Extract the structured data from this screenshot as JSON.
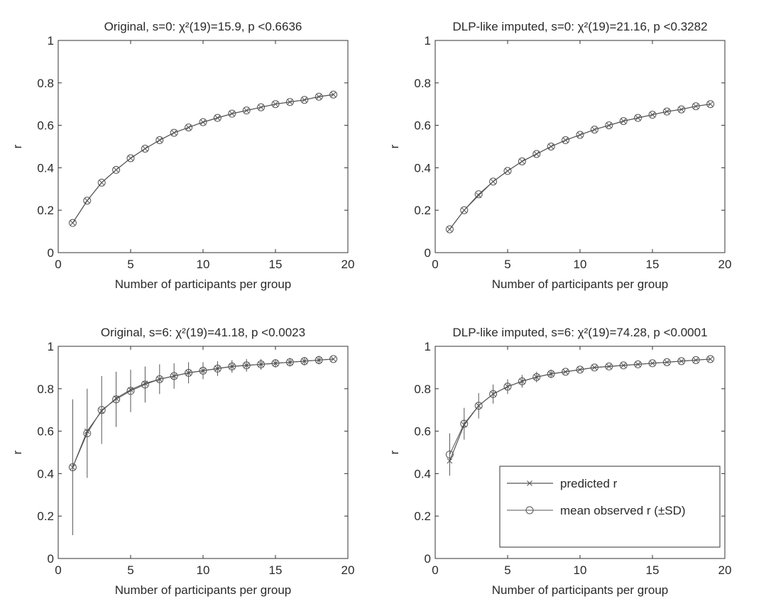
{
  "chart_data": [
    {
      "type": "line",
      "title": "Original, s=0: χ²(19)=15.9, p <0.6636",
      "xlabel": "Number of participants per group",
      "ylabel": "r",
      "xlim": [
        0,
        20
      ],
      "ylim": [
        0,
        1
      ],
      "xticks": [
        0,
        5,
        10,
        15,
        20
      ],
      "yticks": [
        0,
        0.2,
        0.4,
        0.6,
        0.8,
        1
      ],
      "x": [
        1,
        2,
        3,
        4,
        5,
        6,
        7,
        8,
        9,
        10,
        11,
        12,
        13,
        14,
        15,
        16,
        17,
        18,
        19
      ],
      "series": [
        {
          "name": "predicted r",
          "marker": "x",
          "values": [
            0.14,
            0.245,
            0.33,
            0.39,
            0.445,
            0.49,
            0.53,
            0.565,
            0.59,
            0.615,
            0.635,
            0.655,
            0.67,
            0.685,
            0.7,
            0.71,
            0.72,
            0.735,
            0.745
          ],
          "sd": null
        },
        {
          "name": "mean observed r (±SD)",
          "marker": "o",
          "values": [
            0.14,
            0.245,
            0.33,
            0.39,
            0.445,
            0.49,
            0.53,
            0.565,
            0.59,
            0.615,
            0.635,
            0.655,
            0.67,
            0.685,
            0.7,
            0.71,
            0.72,
            0.735,
            0.745
          ],
          "sd": [
            0.01,
            0.01,
            0.01,
            0.01,
            0.01,
            0.01,
            0.01,
            0.01,
            0.01,
            0.01,
            0.01,
            0.01,
            0.01,
            0.01,
            0.01,
            0.01,
            0.01,
            0.01,
            0.01
          ]
        }
      ],
      "legend": false
    },
    {
      "type": "line",
      "title": "DLP-like imputed, s=0: χ²(19)=21.16, p <0.3282",
      "xlabel": "Number of participants per group",
      "ylabel": "r",
      "xlim": [
        0,
        20
      ],
      "ylim": [
        0,
        1
      ],
      "xticks": [
        0,
        5,
        10,
        15,
        20
      ],
      "yticks": [
        0,
        0.2,
        0.4,
        0.6,
        0.8,
        1
      ],
      "x": [
        1,
        2,
        3,
        4,
        5,
        6,
        7,
        8,
        9,
        10,
        11,
        12,
        13,
        14,
        15,
        16,
        17,
        18,
        19
      ],
      "series": [
        {
          "name": "predicted r",
          "marker": "x",
          "values": [
            0.11,
            0.2,
            0.27,
            0.335,
            0.385,
            0.43,
            0.465,
            0.5,
            0.53,
            0.555,
            0.58,
            0.6,
            0.62,
            0.635,
            0.65,
            0.665,
            0.675,
            0.69,
            0.7
          ],
          "sd": null
        },
        {
          "name": "mean observed r (±SD)",
          "marker": "o",
          "values": [
            0.11,
            0.2,
            0.275,
            0.335,
            0.385,
            0.43,
            0.465,
            0.5,
            0.53,
            0.555,
            0.58,
            0.6,
            0.62,
            0.635,
            0.65,
            0.665,
            0.675,
            0.69,
            0.7
          ],
          "sd": [
            0.01,
            0.01,
            0.01,
            0.01,
            0.01,
            0.01,
            0.01,
            0.01,
            0.01,
            0.01,
            0.01,
            0.01,
            0.01,
            0.01,
            0.01,
            0.01,
            0.01,
            0.01,
            0.01
          ]
        }
      ],
      "legend": false
    },
    {
      "type": "line",
      "title": "Original, s=6: χ²(19)=41.18, p <0.0023",
      "xlabel": "Number of participants per group",
      "ylabel": "r",
      "xlim": [
        0,
        20
      ],
      "ylim": [
        0,
        1
      ],
      "xticks": [
        0,
        5,
        10,
        15,
        20
      ],
      "yticks": [
        0,
        0.2,
        0.4,
        0.6,
        0.8,
        1
      ],
      "x": [
        1,
        2,
        3,
        4,
        5,
        6,
        7,
        8,
        9,
        10,
        11,
        12,
        13,
        14,
        15,
        16,
        17,
        18,
        19
      ],
      "series": [
        {
          "name": "predicted r",
          "marker": "x",
          "values": [
            0.43,
            0.6,
            0.695,
            0.755,
            0.795,
            0.825,
            0.845,
            0.86,
            0.875,
            0.885,
            0.895,
            0.905,
            0.91,
            0.915,
            0.92,
            0.925,
            0.93,
            0.935,
            0.94
          ],
          "sd": null
        },
        {
          "name": "mean observed r (±SD)",
          "marker": "o",
          "values": [
            0.43,
            0.59,
            0.7,
            0.75,
            0.79,
            0.82,
            0.845,
            0.86,
            0.875,
            0.885,
            0.895,
            0.905,
            0.91,
            0.915,
            0.92,
            0.925,
            0.93,
            0.935,
            0.94
          ],
          "sd": [
            0.32,
            0.21,
            0.16,
            0.13,
            0.1,
            0.085,
            0.07,
            0.06,
            0.05,
            0.04,
            0.035,
            0.03,
            0.03,
            0.025,
            0.02,
            0.02,
            0.02,
            0.02,
            0.015
          ]
        }
      ],
      "legend": false
    },
    {
      "type": "line",
      "title": "DLP-like imputed, s=6: χ²(19)=74.28, p <0.0001",
      "xlabel": "Number of participants per group",
      "ylabel": "r",
      "xlim": [
        0,
        20
      ],
      "ylim": [
        0,
        1
      ],
      "xticks": [
        0,
        5,
        10,
        15,
        20
      ],
      "yticks": [
        0,
        0.2,
        0.4,
        0.6,
        0.8,
        1
      ],
      "x": [
        1,
        2,
        3,
        4,
        5,
        6,
        7,
        8,
        9,
        10,
        11,
        12,
        13,
        14,
        15,
        16,
        17,
        18,
        19
      ],
      "series": [
        {
          "name": "predicted r",
          "marker": "x",
          "values": [
            0.46,
            0.63,
            0.72,
            0.775,
            0.81,
            0.835,
            0.855,
            0.87,
            0.88,
            0.89,
            0.9,
            0.905,
            0.91,
            0.915,
            0.92,
            0.925,
            0.93,
            0.935,
            0.94
          ],
          "sd": null
        },
        {
          "name": "mean observed r (±SD)",
          "marker": "o",
          "values": [
            0.49,
            0.635,
            0.72,
            0.775,
            0.81,
            0.835,
            0.855,
            0.87,
            0.88,
            0.89,
            0.9,
            0.905,
            0.91,
            0.915,
            0.92,
            0.925,
            0.93,
            0.935,
            0.94
          ],
          "sd": [
            0.1,
            0.075,
            0.06,
            0.045,
            0.035,
            0.03,
            0.025,
            0.02,
            0.015,
            0.015,
            0.012,
            0.012,
            0.01,
            0.01,
            0.01,
            0.01,
            0.01,
            0.01,
            0.01
          ]
        }
      ],
      "legend": true,
      "legend_position": "bottom-right"
    }
  ],
  "colors": {
    "line": "#555555",
    "axis": "#333333",
    "text": "#2a2a2a"
  }
}
